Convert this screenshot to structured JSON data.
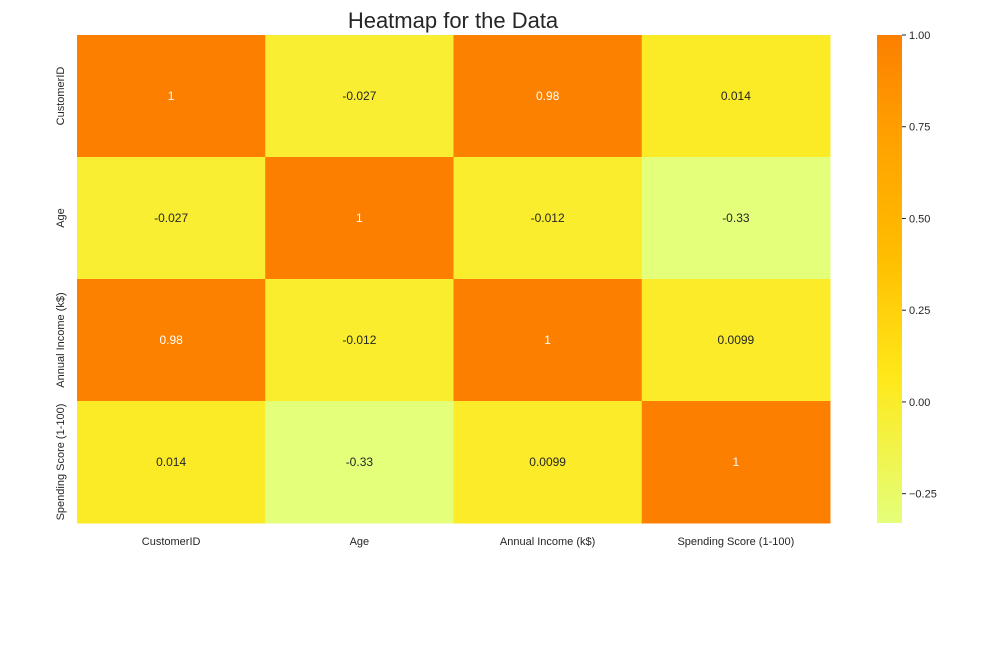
{
  "chart_data": {
    "type": "heatmap",
    "title": "Heatmap for the Data",
    "x_categories": [
      "CustomerID",
      "Age",
      "Annual Income (k$)",
      "Spending Score (1-100)"
    ],
    "y_categories": [
      "CustomerID",
      "Age",
      "Annual Income (k$)",
      "Spending Score (1-100)"
    ],
    "values": [
      [
        1,
        -0.027,
        0.98,
        0.014
      ],
      [
        -0.027,
        1,
        -0.012,
        -0.33
      ],
      [
        0.98,
        -0.012,
        1,
        0.0099
      ],
      [
        0.014,
        -0.33,
        0.0099,
        1
      ]
    ],
    "value_labels": [
      [
        "1",
        "-0.027",
        "0.98",
        "0.014"
      ],
      [
        "-0.027",
        "1",
        "-0.012",
        "-0.33"
      ],
      [
        "0.98",
        "-0.012",
        "1",
        "0.0099"
      ],
      [
        "0.014",
        "-0.33",
        "0.0099",
        "1"
      ]
    ],
    "colorscale": "Wistia",
    "colorbar": {
      "range": [
        -0.33,
        1.0
      ],
      "ticks": [
        1.0,
        0.75,
        0.5,
        0.25,
        0.0,
        -0.25
      ],
      "tick_labels": [
        "1.00",
        "0.75",
        "0.50",
        "0.25",
        "0.00",
        "−0.25"
      ]
    },
    "grid": false,
    "legend": "colorbar-right"
  }
}
